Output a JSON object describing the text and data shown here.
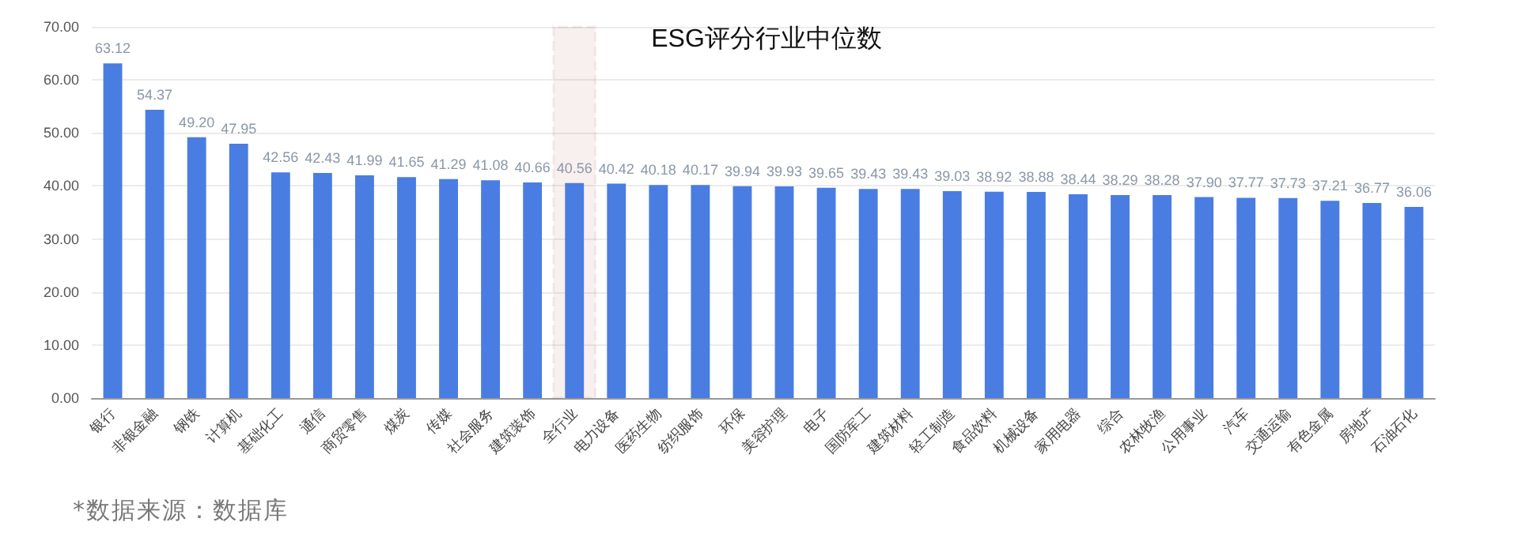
{
  "chart_data": {
    "type": "bar",
    "title": "ESG评分行业中位数",
    "categories": [
      "银行",
      "非银金融",
      "钢铁",
      "计算机",
      "基础化工",
      "通信",
      "商贸零售",
      "煤炭",
      "传媒",
      "社会服务",
      "建筑装饰",
      "全行业",
      "电力设备",
      "医药生物",
      "纺织服饰",
      "环保",
      "美容护理",
      "电子",
      "国防军工",
      "建筑材料",
      "轻工制造",
      "食品饮料",
      "机械设备",
      "家用电器",
      "综合",
      "农林牧渔",
      "公用事业",
      "汽车",
      "交通运输",
      "有色金属",
      "房地产",
      "石油石化"
    ],
    "values": [
      63.12,
      54.37,
      49.2,
      47.95,
      42.56,
      42.43,
      41.99,
      41.65,
      41.29,
      41.08,
      40.66,
      40.56,
      40.42,
      40.18,
      40.17,
      39.94,
      39.93,
      39.65,
      39.43,
      39.43,
      39.03,
      38.92,
      38.88,
      38.44,
      38.29,
      38.28,
      37.9,
      37.77,
      37.73,
      37.21,
      36.77,
      36.06
    ],
    "value_labels": [
      "63.12",
      "54.37",
      "49.20",
      "47.95",
      "42.56",
      "42.43",
      "41.99",
      "41.65",
      "41.29",
      "41.08",
      "40.66",
      "40.56",
      "40.42",
      "40.18",
      "40.17",
      "39.94",
      "39.93",
      "39.65",
      "39.43",
      "39.43",
      "39.03",
      "38.92",
      "38.88",
      "38.44",
      "38.29",
      "38.28",
      "37.90",
      "37.77",
      "37.73",
      "37.21",
      "36.77",
      "36.06"
    ],
    "color": "#4a7de2",
    "ylim": [
      0,
      70
    ],
    "yticks": [
      {
        "value": 0,
        "label": "0.00"
      },
      {
        "value": 10,
        "label": "10.00"
      },
      {
        "value": 20,
        "label": "20.00"
      },
      {
        "value": 30,
        "label": "30.00"
      },
      {
        "value": 40,
        "label": "40.00"
      },
      {
        "value": 50,
        "label": "50.00"
      },
      {
        "value": 60,
        "label": "60.00"
      },
      {
        "value": 70,
        "label": "70.00"
      }
    ],
    "grid": "y",
    "bands": [
      {
        "axis": "x",
        "from": "全行业",
        "to": "全行业",
        "color": "#a83232"
      }
    ],
    "annotations": [
      "*数据来源：数据库"
    ]
  }
}
